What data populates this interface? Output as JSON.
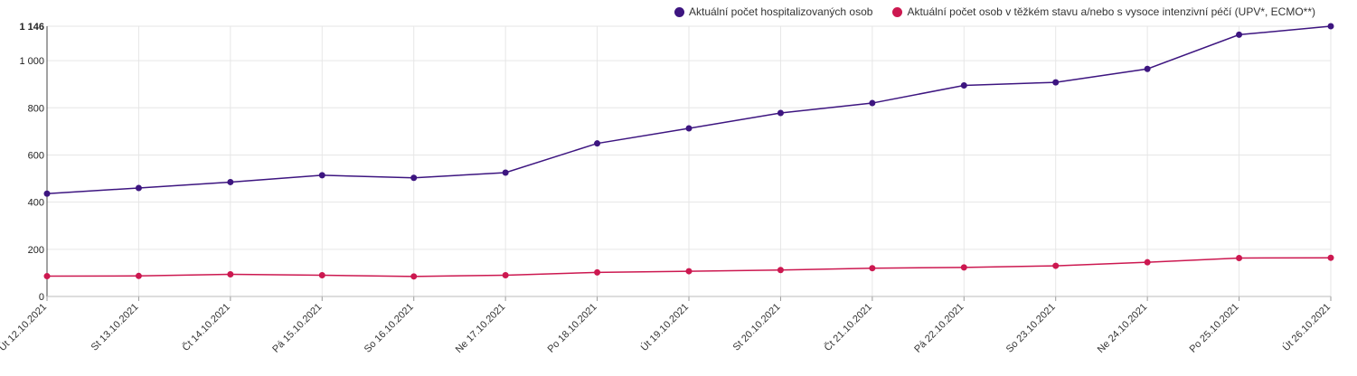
{
  "chart_data": {
    "type": "line",
    "categories": [
      "Út 12.10.2021",
      "St 13.10.2021",
      "Čt 14.10.2021",
      "Pá 15.10.2021",
      "So 16.10.2021",
      "Ne 17.10.2021",
      "Po 18.10.2021",
      "Út 19.10.2021",
      "St 20.10.2021",
      "Čt 21.10.2021",
      "Pá 22.10.2021",
      "So 23.10.2021",
      "Ne 24.10.2021",
      "Po 25.10.2021",
      "Út 26.10.2021"
    ],
    "series": [
      {
        "name": "Aktuální počet hospitalizovaných osob",
        "color": "#3d1580",
        "values": [
          436,
          460,
          485,
          514,
          503,
          525,
          649,
          713,
          778,
          820,
          895,
          908,
          965,
          1110,
          1146
        ]
      },
      {
        "name": "Aktuální počet osob v těžkém stavu a/nebo s vysoce intenzivní péčí (UPV*, ECMO**)",
        "color": "#cc1850",
        "values": [
          86,
          87,
          94,
          90,
          85,
          90,
          102,
          107,
          112,
          120,
          123,
          130,
          145,
          163,
          164
        ]
      }
    ],
    "yticks": [
      0,
      200,
      400,
      600,
      800,
      1000,
      1146
    ],
    "ytick_labels": [
      "0",
      "200",
      "400",
      "600",
      "800",
      "1 000",
      "1 146"
    ],
    "ylim": [
      0,
      1146
    ],
    "grid": true,
    "legend_position": "top-right"
  }
}
